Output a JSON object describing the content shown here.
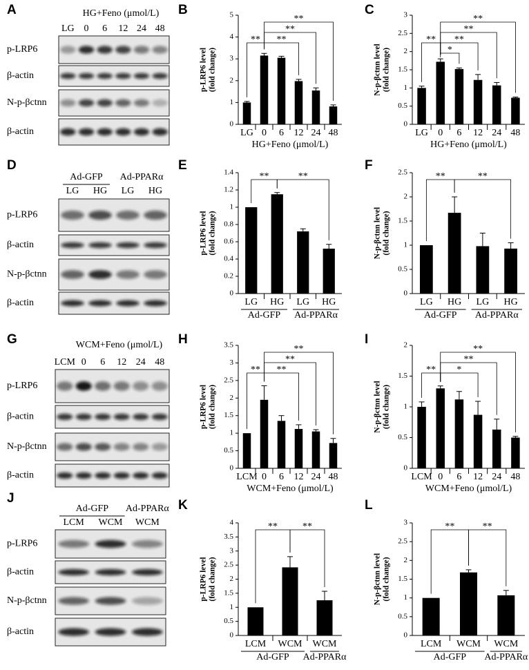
{
  "blots": [
    {
      "panel": "A",
      "header": "HG+Feno (μmol/L)",
      "lanes": [
        "LG",
        "0",
        "6",
        "12",
        "24",
        "48"
      ],
      "rows": [
        "p-LRP6",
        "β-actin",
        "N-p-βctnn",
        "β-actin"
      ]
    },
    {
      "panel": "D",
      "groups": [
        "Ad-GFP",
        "Ad-PPARα"
      ],
      "lanes": [
        "LG",
        "HG",
        "LG",
        "HG"
      ],
      "rows": [
        "p-LRP6",
        "β-actin",
        "N-p-βctnn",
        "β-actin"
      ]
    },
    {
      "panel": "G",
      "header": "WCM+Feno (μmol/L)",
      "lanes": [
        "LCM",
        "0",
        "6",
        "12",
        "24",
        "48"
      ],
      "rows": [
        "p-LRP6",
        "β-actin",
        "N-p-βctnn",
        "β-actin"
      ]
    },
    {
      "panel": "J",
      "groups": [
        "Ad-GFP",
        "Ad-PPARα"
      ],
      "lanes": [
        "LCM",
        "WCM",
        "WCM"
      ],
      "rows": [
        "p-LRP6",
        "β-actin",
        "N-p-βctnn",
        "β-actin"
      ]
    }
  ],
  "chart_data": [
    {
      "type": "bar",
      "panel": "B",
      "ylabel": [
        "p-LRP6 level",
        "(fold change)"
      ],
      "xlabel": "HG+Feno (μmol/L)",
      "categories": [
        "LG",
        "0",
        "6",
        "12",
        "24",
        "48"
      ],
      "values": [
        1.0,
        3.15,
        3.05,
        1.98,
        1.55,
        0.82
      ],
      "errors": [
        0.05,
        0.1,
        0.07,
        0.08,
        0.12,
        0.07
      ],
      "color": "#000000",
      "ylim": [
        0,
        5
      ],
      "yticks": [
        0,
        1,
        2,
        3,
        4,
        5
      ],
      "annotations": [
        {
          "text": "**",
          "x": [
            0,
            1
          ]
        },
        {
          "text": "**",
          "x": [
            1,
            3
          ]
        },
        {
          "text": "**",
          "x": [
            1,
            4
          ]
        },
        {
          "text": "**",
          "x": [
            1,
            5
          ]
        }
      ]
    },
    {
      "type": "bar",
      "panel": "C",
      "ylabel": [
        "N-p-βctnn level",
        "(fold change)"
      ],
      "xlabel": "HG+Feno (μmol/L)",
      "categories": [
        "LG",
        "0",
        "6",
        "12",
        "24",
        "48"
      ],
      "values": [
        1.0,
        1.72,
        1.52,
        1.22,
        1.07,
        0.73
      ],
      "errors": [
        0.05,
        0.08,
        0.03,
        0.15,
        0.08,
        0.02
      ],
      "color": "#000000",
      "ylim": [
        0,
        3
      ],
      "yticks": [
        0,
        0.5,
        1,
        1.5,
        2,
        2.5,
        3
      ],
      "annotations": [
        {
          "text": "**",
          "x": [
            0,
            1
          ]
        },
        {
          "text": "*",
          "x": [
            1,
            2
          ]
        },
        {
          "text": "**",
          "x": [
            1,
            3
          ]
        },
        {
          "text": "**",
          "x": [
            1,
            4
          ]
        },
        {
          "text": "**",
          "x": [
            1,
            5
          ]
        }
      ]
    },
    {
      "type": "bar",
      "panel": "E",
      "ylabel": [
        "p-LRP6 level",
        "(fold change)"
      ],
      "groups": [
        "Ad-GFP",
        "Ad-PPARα"
      ],
      "categories": [
        "LG",
        "HG",
        "LG",
        "HG"
      ],
      "values": [
        1.0,
        1.15,
        0.72,
        0.52
      ],
      "errors": [
        0,
        0.02,
        0.03,
        0.05
      ],
      "color": "#000000",
      "ylim": [
        0,
        1.4
      ],
      "yticks": [
        0,
        0.2,
        0.4,
        0.6,
        0.8,
        1,
        1.2,
        1.4
      ],
      "annotations": [
        {
          "text": "**",
          "x": [
            0,
            1
          ]
        },
        {
          "text": "**",
          "x": [
            1,
            3
          ]
        }
      ]
    },
    {
      "type": "bar",
      "panel": "F",
      "ylabel": [
        "N-p-βctnn level",
        "(fold change)"
      ],
      "groups": [
        "Ad-GFP",
        "Ad-PPARα"
      ],
      "categories": [
        "LG",
        "HG",
        "LG",
        "HG"
      ],
      "values": [
        1.0,
        1.67,
        0.98,
        0.93
      ],
      "errors": [
        0,
        0.33,
        0.27,
        0.12
      ],
      "color": "#000000",
      "ylim": [
        0,
        2.5
      ],
      "yticks": [
        0,
        0.5,
        1,
        1.5,
        2,
        2.5
      ],
      "annotations": [
        {
          "text": "**",
          "x": [
            0,
            1
          ]
        },
        {
          "text": "**",
          "x": [
            1,
            3
          ]
        }
      ]
    },
    {
      "type": "bar",
      "panel": "H",
      "ylabel": [
        "p-LRP6 level",
        "(fold change)"
      ],
      "xlabel": "WCM+Feno (μmol/L)",
      "categories": [
        "LCM",
        "0",
        "6",
        "12",
        "24",
        "48"
      ],
      "values": [
        1.0,
        1.95,
        1.35,
        1.12,
        1.05,
        0.72
      ],
      "errors": [
        0,
        0.4,
        0.15,
        0.12,
        0.05,
        0.13
      ],
      "color": "#000000",
      "ylim": [
        0,
        3.5
      ],
      "yticks": [
        0,
        0.5,
        1,
        1.5,
        2,
        2.5,
        3,
        3.5
      ],
      "annotations": [
        {
          "text": "**",
          "x": [
            0,
            1
          ]
        },
        {
          "text": "**",
          "x": [
            1,
            3
          ]
        },
        {
          "text": "**",
          "x": [
            1,
            4
          ]
        },
        {
          "text": "**",
          "x": [
            1,
            5
          ]
        }
      ]
    },
    {
      "type": "bar",
      "panel": "I",
      "ylabel": [
        "N-p-βctnn level",
        "(fold change)"
      ],
      "xlabel": "WCM+Feno (μmol/L)",
      "categories": [
        "LCM",
        "0",
        "6",
        "12",
        "24",
        "48"
      ],
      "values": [
        1.0,
        1.3,
        1.12,
        0.87,
        0.63,
        0.5
      ],
      "errors": [
        0.08,
        0.04,
        0.13,
        0.22,
        0.17,
        0.02
      ],
      "color": "#000000",
      "ylim": [
        0,
        2
      ],
      "yticks": [
        0,
        0.5,
        1,
        1.5,
        2
      ],
      "annotations": [
        {
          "text": "**",
          "x": [
            0,
            1
          ]
        },
        {
          "text": "*",
          "x": [
            1,
            3
          ]
        },
        {
          "text": "**",
          "x": [
            1,
            4
          ]
        },
        {
          "text": "**",
          "x": [
            1,
            5
          ]
        }
      ]
    },
    {
      "type": "bar",
      "panel": "K",
      "ylabel": [
        "p-LRP6 level",
        "(fold change)"
      ],
      "groups": [
        "Ad-GFP",
        "Ad-PPARα"
      ],
      "categories": [
        "LCM",
        "WCM",
        "WCM"
      ],
      "values": [
        1.0,
        2.42,
        1.25
      ],
      "errors": [
        0,
        0.38,
        0.32
      ],
      "color": "#000000",
      "ylim": [
        0,
        4
      ],
      "yticks": [
        0,
        0.5,
        1,
        1.5,
        2,
        2.5,
        3,
        3.5,
        4
      ],
      "annotations": [
        {
          "text": "**",
          "x": [
            0,
            1
          ]
        },
        {
          "text": "**",
          "x": [
            1,
            2
          ]
        }
      ]
    },
    {
      "type": "bar",
      "panel": "L",
      "ylabel": [
        "N-p-βctnn level",
        "(fold change)"
      ],
      "groups": [
        "Ad-GFP",
        "Ad-PPARα"
      ],
      "categories": [
        "LCM",
        "WCM",
        "WCM"
      ],
      "values": [
        1.0,
        1.68,
        1.07
      ],
      "errors": [
        0,
        0.07,
        0.13
      ],
      "color": "#000000",
      "ylim": [
        0,
        3
      ],
      "yticks": [
        0,
        0.5,
        1,
        1.5,
        2,
        2.5,
        3
      ],
      "annotations": [
        {
          "text": "**",
          "x": [
            0,
            1
          ]
        },
        {
          "text": "**",
          "x": [
            1,
            2
          ]
        }
      ]
    }
  ]
}
